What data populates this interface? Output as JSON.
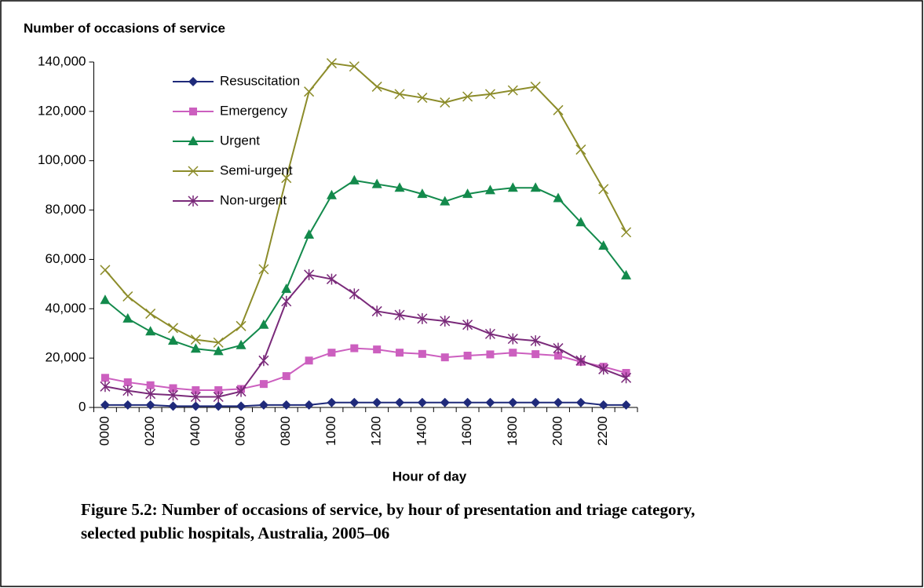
{
  "chart_data": {
    "type": "line",
    "ylabel": "Number of occasions of service",
    "xlabel": "Hour of day",
    "caption": [
      "Figure 5.2: Number of occasions of service, by hour of presentation and triage category,",
      "selected public hospitals, Australia, 2005–06"
    ],
    "categories": [
      "0000",
      null,
      "0200",
      null,
      "0400",
      null,
      "0600",
      null,
      "0800",
      null,
      "1000",
      null,
      "1200",
      null,
      "1400",
      null,
      "1600",
      null,
      "1800",
      null,
      "2000",
      null,
      "2200",
      null
    ],
    "ylim": [
      0,
      140000
    ],
    "yticks": [
      0,
      {
        "value": 20000,
        "label": "20,000"
      },
      {
        "value": 40000,
        "label": "40,000"
      },
      {
        "value": 60000,
        "label": "60,000"
      },
      {
        "value": 80000,
        "label": "80,000"
      },
      {
        "value": 100000,
        "label": "100,000"
      },
      {
        "value": 120000,
        "label": "120,000"
      },
      {
        "value": 140000,
        "label": "140,000"
      }
    ],
    "legend": "upper left",
    "series": [
      {
        "name": "Resuscitation",
        "color": "#1f2a7a",
        "marker": "diamond",
        "values": [
          1000,
          1000,
          1000,
          500,
          500,
          500,
          500,
          1000,
          1000,
          1000,
          2000,
          2000,
          2000,
          2000,
          2000,
          2000,
          2000,
          2000,
          2000,
          2000,
          2000,
          2000,
          1000,
          1000
        ]
      },
      {
        "name": "Emergency",
        "color": "#cc5fbf",
        "marker": "square",
        "values": [
          12000,
          10200,
          9000,
          7800,
          7000,
          7000,
          7500,
          9500,
          12700,
          19000,
          22200,
          24000,
          23500,
          22200,
          21700,
          20300,
          21000,
          21500,
          22200,
          21600,
          21000,
          18500,
          16500,
          14000
        ]
      },
      {
        "name": "Urgent",
        "color": "#138a4c",
        "marker": "triangle",
        "values": [
          43500,
          36000,
          30800,
          27000,
          23800,
          22800,
          25200,
          33500,
          48000,
          70000,
          86000,
          92000,
          90500,
          89000,
          86500,
          83500,
          86500,
          88000,
          89000,
          89000,
          84800,
          75000,
          65500,
          53500
        ]
      },
      {
        "name": "Semi-urgent",
        "color": "#8c8c2a",
        "marker": "x",
        "values": [
          55700,
          45000,
          38000,
          32200,
          27500,
          26300,
          33000,
          56000,
          93000,
          128000,
          139500,
          138200,
          130000,
          127000,
          125500,
          123600,
          126000,
          127000,
          128500,
          130000,
          120500,
          104500,
          88500,
          71000
        ]
      },
      {
        "name": "Non-urgent",
        "color": "#7a2a7a",
        "marker": "star",
        "values": [
          8500,
          6800,
          5500,
          5000,
          4300,
          4300,
          6500,
          19000,
          43000,
          53800,
          52000,
          46000,
          39000,
          37500,
          36000,
          35000,
          33500,
          29800,
          27800,
          27000,
          24000,
          19000,
          15500,
          12000
        ]
      }
    ]
  }
}
